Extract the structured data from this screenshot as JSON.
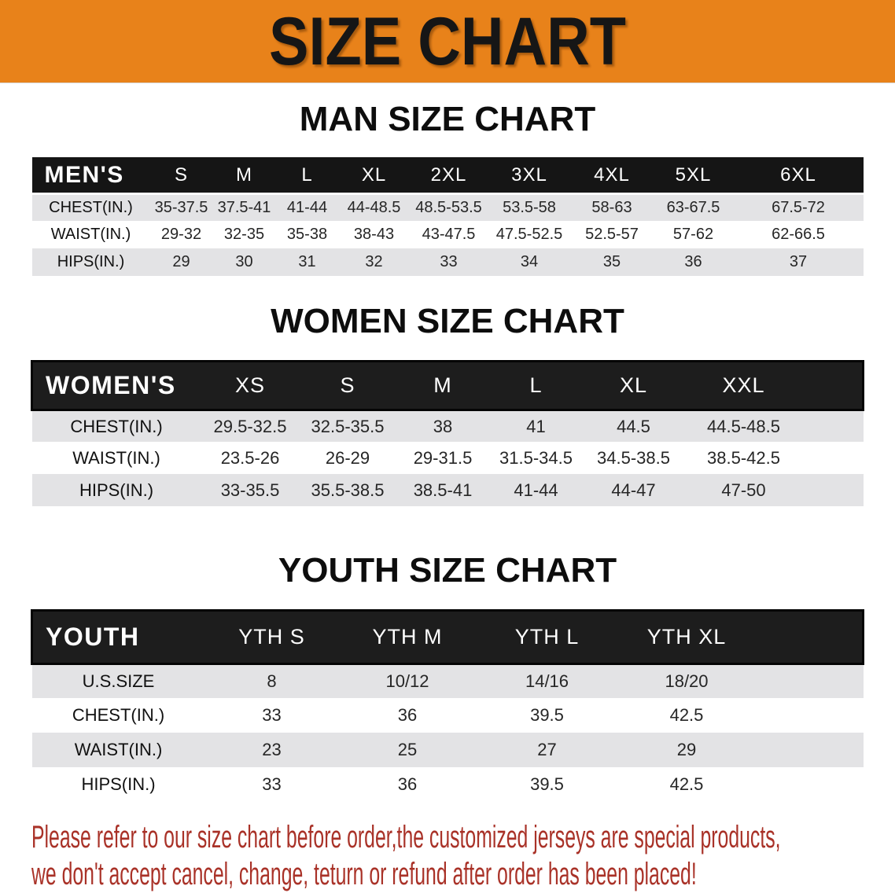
{
  "banner": {
    "title": "SIZE CHART"
  },
  "sections": [
    {
      "id": "men",
      "title": "MAN SIZE CHART",
      "header_label": "MEN'S",
      "columns": [
        "S",
        "M",
        "L",
        "XL",
        "2XL",
        "3XL",
        "4XL",
        "5XL",
        "6XL"
      ],
      "rows": [
        {
          "label": "CHEST(IN.)",
          "values": [
            "35-37.5",
            "37.5-41",
            "41-44",
            "44-48.5",
            "48.5-53.5",
            "53.5-58",
            "58-63",
            "63-67.5",
            "67.5-72"
          ]
        },
        {
          "label": "WAIST(IN.)",
          "values": [
            "29-32",
            "32-35",
            "35-38",
            "38-43",
            "43-47.5",
            "47.5-52.5",
            "52.5-57",
            "57-62",
            "62-66.5"
          ]
        },
        {
          "label": "HIPS(IN.)",
          "values": [
            "29",
            "30",
            "31",
            "32",
            "33",
            "34",
            "35",
            "36",
            "37"
          ]
        }
      ]
    },
    {
      "id": "women",
      "title": "WOMEN SIZE CHART",
      "header_label": "WOMEN'S",
      "columns": [
        "XS",
        "S",
        "M",
        "L",
        "XL",
        "XXL"
      ],
      "rows": [
        {
          "label": "CHEST(IN.)",
          "values": [
            "29.5-32.5",
            "32.5-35.5",
            "38",
            "41",
            "44.5",
            "44.5-48.5"
          ]
        },
        {
          "label": "WAIST(IN.)",
          "values": [
            "23.5-26",
            "26-29",
            "29-31.5",
            "31.5-34.5",
            "34.5-38.5",
            "38.5-42.5"
          ]
        },
        {
          "label": "HIPS(IN.)",
          "values": [
            "33-35.5",
            "35.5-38.5",
            "38.5-41",
            "41-44",
            "44-47",
            "47-50"
          ]
        }
      ]
    },
    {
      "id": "youth",
      "title": "YOUTH SIZE CHART",
      "header_label": "YOUTH",
      "columns": [
        "YTH S",
        "YTH M",
        "YTH L",
        "YTH XL"
      ],
      "rows": [
        {
          "label": "U.S.SIZE",
          "values": [
            "8",
            "10/12",
            "14/16",
            "18/20"
          ]
        },
        {
          "label": "CHEST(IN.)",
          "values": [
            "33",
            "36",
            "39.5",
            "42.5"
          ]
        },
        {
          "label": "WAIST(IN.)",
          "values": [
            "23",
            "25",
            "27",
            "29"
          ]
        },
        {
          "label": "HIPS(IN.)",
          "values": [
            "33",
            "36",
            "39.5",
            "42.5"
          ]
        }
      ]
    }
  ],
  "disclaimer": {
    "line1": "Please refer to our size chart before order,the customized jerseys are special products,",
    "line2": "we don't accept cancel, change, teturn or refund after order has been placed!"
  },
  "colors": {
    "banner_orange": "#E8821A",
    "header_black": "#151515",
    "row_gray": "#E3E3E5",
    "disclaimer_red": "#A93228"
  }
}
